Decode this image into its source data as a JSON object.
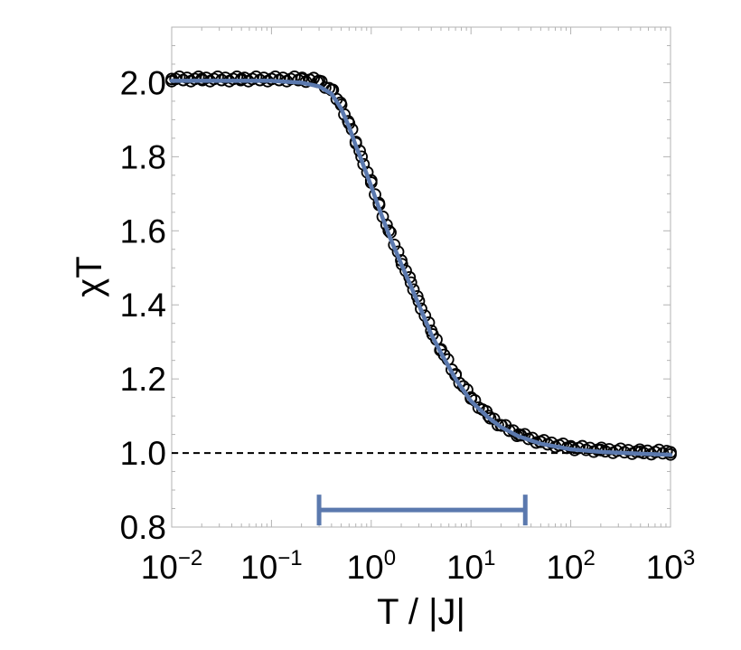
{
  "chart_data": {
    "type": "scatter",
    "title": "",
    "xlabel": "T / |J|",
    "ylabel": "χT",
    "x_scale": "log",
    "xlim": [
      0.01,
      1000
    ],
    "ylim": [
      0.8,
      2.15
    ],
    "x_ticks": [
      {
        "base": "10",
        "exp": "−2",
        "value": 0.01
      },
      {
        "base": "10",
        "exp": "−1",
        "value": 0.1
      },
      {
        "base": "10",
        "exp": "0",
        "value": 1
      },
      {
        "base": "10",
        "exp": "1",
        "value": 10
      },
      {
        "base": "10",
        "exp": "2",
        "value": 100
      },
      {
        "base": "10",
        "exp": "3",
        "value": 1000
      }
    ],
    "y_ticks": [
      {
        "label": "0.8",
        "value": 0.8
      },
      {
        "label": "1.0",
        "value": 1.0
      },
      {
        "label": "1.2",
        "value": 1.2
      },
      {
        "label": "1.4",
        "value": 1.4
      },
      {
        "label": "1.6",
        "value": 1.6
      },
      {
        "label": "1.8",
        "value": 1.8
      },
      {
        "label": "2.0",
        "value": 2.0
      }
    ],
    "reference_line": {
      "y": 1.0,
      "style": "dashed",
      "color": "#000000"
    },
    "range_bar": {
      "x_start": 0.3,
      "x_end": 35,
      "y": 0.846,
      "color": "#5b79ae"
    },
    "series": [
      {
        "marker": "open-circle",
        "color": "#000000",
        "x": [
          0.01,
          0.02,
          0.05,
          0.1,
          0.2,
          0.3,
          0.4,
          0.5,
          0.6,
          0.7,
          0.8,
          1.0,
          1.2,
          1.5,
          2.0,
          2.5,
          3.0,
          4.0,
          5.0,
          7.0,
          10,
          15,
          20,
          30,
          50,
          100,
          200,
          500,
          1000
        ],
        "y": [
          2.01,
          2.01,
          2.01,
          2.01,
          2.01,
          2.005,
          1.98,
          1.94,
          1.89,
          1.84,
          1.8,
          1.73,
          1.67,
          1.6,
          1.52,
          1.46,
          1.41,
          1.33,
          1.28,
          1.21,
          1.15,
          1.1,
          1.075,
          1.05,
          1.03,
          1.015,
          1.008,
          1.003,
          1.002
        ]
      },
      {
        "marker": "line",
        "color": "#5b79ae",
        "x": [
          0.01,
          0.02,
          0.05,
          0.1,
          0.2,
          0.3,
          0.4,
          0.5,
          0.6,
          0.7,
          0.8,
          1.0,
          1.2,
          1.5,
          2.0,
          2.5,
          3.0,
          4.0,
          5.0,
          7.0,
          10,
          15,
          20,
          30,
          50,
          100,
          200,
          500,
          1000
        ],
        "y": [
          2.005,
          2.005,
          2.005,
          2.005,
          2.0,
          1.99,
          1.97,
          1.93,
          1.88,
          1.83,
          1.79,
          1.72,
          1.66,
          1.59,
          1.51,
          1.45,
          1.4,
          1.32,
          1.27,
          1.2,
          1.14,
          1.095,
          1.07,
          1.045,
          1.025,
          1.01,
          1.003,
          0.998,
          0.995
        ]
      }
    ]
  }
}
